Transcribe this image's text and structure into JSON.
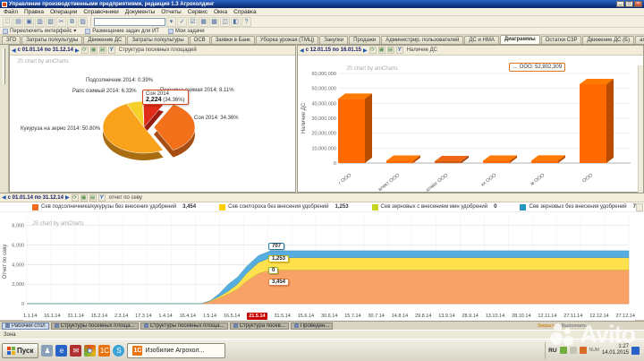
{
  "win": {
    "title": "Управление производственными предприятиями, редакция 1.3 Агрохолдинг"
  },
  "menu": {
    "items": [
      "Файл",
      "Правка",
      "Операции",
      "Справочники",
      "Документы",
      "Отчеты",
      "Сервис",
      "Окна",
      "Справка"
    ]
  },
  "toolbar": {
    "search_value": "",
    "icons": [
      "new",
      "open",
      "save",
      "print",
      "preview",
      "cut",
      "copy",
      "paste",
      "dropdown",
      "find",
      "check",
      "calc",
      "calendar",
      "tile",
      "cascade",
      "help"
    ]
  },
  "iface": {
    "items": [
      "Переключить интерфейс ▾",
      "Размещение задач для ИТ",
      "Мои задачи"
    ]
  },
  "tabs": {
    "active_index": 11,
    "items": [
      "ЗГО",
      "Затраты по/культуры",
      "Движение ДС",
      "Затраты по/культуры",
      "ОСВ",
      "Заявки в Банк",
      "Уборка урожая (ТМЦ)",
      "Закупки",
      "Продажи",
      "Администрир. пользователей",
      "ДС и НМА",
      "Диаграммы",
      "Остатки СЗР",
      "Движение ДС (Б)",
      "amCharts сев"
    ]
  },
  "panels": {
    "pie": {
      "date_range": "с 01.01.14 по 31.12.14",
      "title": "Структура посевных площадей",
      "brand": "JS chart by amCharts"
    },
    "bar": {
      "date_range": "с 12.01.15 по 16.01.15",
      "title": "Наличие ДС",
      "brand": "JS chart by amCharts",
      "tooltip": "… ООО: 52,802,309"
    },
    "area": {
      "date_range": "с 01.01.14 по 31.12.14",
      "title": "отчет по севу",
      "brand": "JS chart by amCharts"
    }
  },
  "legend": {
    "items": [
      {
        "label": "Сев подсолнечника/кукурузы без внесения удобрений",
        "value": "3,454",
        "color": "#f26d21"
      },
      {
        "label": "Сев сои/гороха без внесения удобрений",
        "value": "1,253",
        "color": "#ffd100"
      },
      {
        "label": "Сев зерновых с внесением мин удобрений",
        "value": "0",
        "color": "#c8d420"
      },
      {
        "label": "Сев зерновых без внесения удобрений",
        "value": "707",
        "color": "#2596be"
      }
    ]
  },
  "chart_data": [
    {
      "type": "pie",
      "title": "Структура посевных площадей",
      "slices": [
        {
          "label": "Рапс озимый 2014",
          "pct": "6.33",
          "color": "#f4d028"
        },
        {
          "label": "Подсолнечник 2014",
          "pct": "0.39",
          "color": "#e5a91f"
        },
        {
          "label": "Пшеница озимая 2014",
          "pct": "8.11",
          "color": "#e02b18"
        },
        {
          "label": "Соя 2014",
          "pct": "34.36",
          "value": "2,224",
          "color": "#f4711c",
          "exploded": true
        },
        {
          "label": "Кукуруза на зерно 2014",
          "pct": "50.80",
          "color": "#f9a21b"
        }
      ],
      "tooltip": {
        "title": "Соя 2014",
        "value": "2,224",
        "pct": "(34.36%)"
      }
    },
    {
      "type": "bar",
      "ylabel": "Наличие ДС",
      "ymax": 60000000,
      "yticks": [
        "0",
        "10,000,000",
        "20,000,000",
        "30,000,000",
        "40,000,000",
        "50,000,000",
        "60,000,000"
      ],
      "categories": [
        "г ООО",
        "влект ООО",
        "алмаг ООО",
        "кх ООО",
        "м ООО",
        "ООО"
      ],
      "values": [
        43000000,
        1500000,
        1200000,
        1500000,
        1600000,
        52802309
      ],
      "bar_color": "#ff6a00",
      "highlight_index": 2,
      "highlight_color": "#cf5a10",
      "tooltip": "… ООО: 52,802,309"
    },
    {
      "type": "area",
      "ylabel": "Отчет по севу",
      "ymax": 8800,
      "yticks": [
        "0",
        "2,000",
        "4,000",
        "6,000",
        "8,000"
      ],
      "ytick_values": [
        0,
        2000,
        4000,
        6000,
        8000
      ],
      "x_labels": [
        "1.1.14",
        "16.1.14",
        "31.1.14",
        "15.2.14",
        "2.3.14",
        "17.3.14",
        "1.4.14",
        "16.4.14",
        "1.5.14",
        "16.5.14",
        "21.5.14",
        "31.5.14",
        "15.6.14",
        "30.6.14",
        "15.7.14",
        "30.7.14",
        "14.8.14",
        "29.8.14",
        "13.9.14",
        "28.9.14",
        "13.10.14",
        "28.10.14",
        "12.11.14",
        "27.11.14",
        "12.12.14",
        "27.12.14"
      ],
      "highlight_x_label": "21.5.14",
      "series": [
        {
          "name": "Сев подсолнечника/кукурузы без внесения удобрений",
          "final": 3454,
          "color": "#f9a268"
        },
        {
          "name": "Сев зерновых с внесением мин удобрений",
          "final": 0,
          "color": "#c8d420"
        },
        {
          "name": "Сев сои/гороха без внесения удобрений",
          "final": 1253,
          "color": "#ffe14d"
        },
        {
          "name": "Сев зерновых без внесения удобрений",
          "final": 707,
          "color": "#56aede"
        }
      ],
      "keyframes": [
        {
          "t": 0.0,
          "v": [
            0,
            0,
            0,
            0
          ]
        },
        {
          "t": 0.29,
          "v": [
            0,
            0,
            0,
            0
          ]
        },
        {
          "t": 0.305,
          "v": [
            250,
            0,
            60,
            0
          ]
        },
        {
          "t": 0.32,
          "v": [
            600,
            0,
            150,
            300
          ]
        },
        {
          "t": 0.335,
          "v": [
            1000,
            0,
            300,
            707
          ]
        },
        {
          "t": 0.35,
          "v": [
            1500,
            0,
            500,
            707
          ]
        },
        {
          "t": 0.365,
          "v": [
            2300,
            0,
            800,
            707
          ]
        },
        {
          "t": 0.385,
          "v": [
            3100,
            0,
            1120,
            707
          ]
        },
        {
          "t": 0.405,
          "v": [
            3454,
            0,
            1253,
            707
          ]
        },
        {
          "t": 1.0,
          "v": [
            3454,
            0,
            1253,
            707
          ]
        }
      ],
      "point_tooltips": [
        {
          "text": "707",
          "color": "#2578a8"
        },
        {
          "text": "1,253",
          "color": "#d4b800"
        },
        {
          "text": "0",
          "color": "#8faf1f"
        },
        {
          "text": "3,454",
          "color": "#e07b39"
        }
      ]
    }
  ],
  "mdi": {
    "active": "Рабочий стол",
    "items": [
      "Структуры посевных площа...",
      "Структуры посевных площа...",
      "Структура посев...",
      "Проведен..."
    ],
    "links": [
      "Закрыть",
      "Выполнить"
    ]
  },
  "status": {
    "text": "Зона"
  },
  "task": {
    "start": "Пуск",
    "app": "Изобилие Агрохол...",
    "tray_lang": "RU",
    "tray_num": "NUM",
    "tray_time": "1:27",
    "tray_date": "14.01.2015"
  },
  "watermark": {
    "text": "Avito"
  }
}
